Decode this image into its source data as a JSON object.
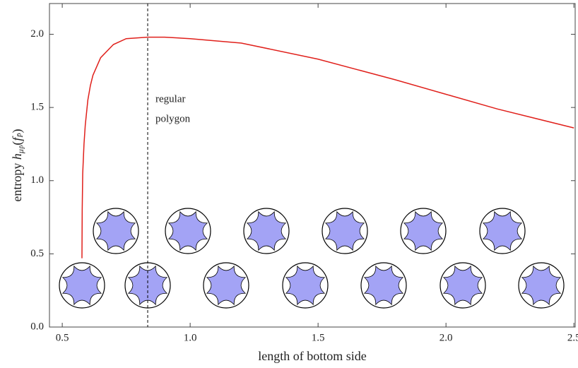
{
  "chart_data": {
    "type": "line",
    "xlabel": "length of bottom side",
    "ylabel": [
      "entropy ",
      "h",
      "μ",
      "P̄",
      "(",
      "f",
      "P̄",
      ")"
    ],
    "annotation": [
      "regular",
      "polygon"
    ],
    "reference_x": 0.834,
    "x": [
      0.577,
      0.578,
      0.58,
      0.585,
      0.59,
      0.6,
      0.61,
      0.62,
      0.65,
      0.7,
      0.75,
      0.834,
      0.9,
      1.0,
      1.2,
      1.5,
      1.8,
      2.0,
      2.2,
      2.5
    ],
    "series": [
      {
        "color": "#e0201b",
        "values": [
          0.47,
          0.8,
          1.05,
          1.25,
          1.38,
          1.55,
          1.65,
          1.72,
          1.84,
          1.93,
          1.97,
          1.98,
          1.98,
          1.97,
          1.94,
          1.83,
          1.69,
          1.59,
          1.49,
          1.36
        ]
      }
    ],
    "xlim": [
      0.45,
      2.505
    ],
    "ylim": [
      0,
      2.21
    ],
    "xticks": [
      {
        "value": 0.5,
        "label": "0.5"
      },
      {
        "value": 1.0,
        "label": "1.0"
      },
      {
        "value": 1.5,
        "label": "1.5"
      },
      {
        "value": 2.0,
        "label": "2.0"
      },
      {
        "value": 2.5,
        "label": "2.5"
      }
    ],
    "yticks": [
      {
        "value": 0.0,
        "label": "0.0"
      },
      {
        "value": 0.5,
        "label": "0.5"
      },
      {
        "value": 1.0,
        "label": "1.0"
      },
      {
        "value": 1.5,
        "label": "1.5"
      },
      {
        "value": 2.0,
        "label": "2.0"
      }
    ]
  }
}
